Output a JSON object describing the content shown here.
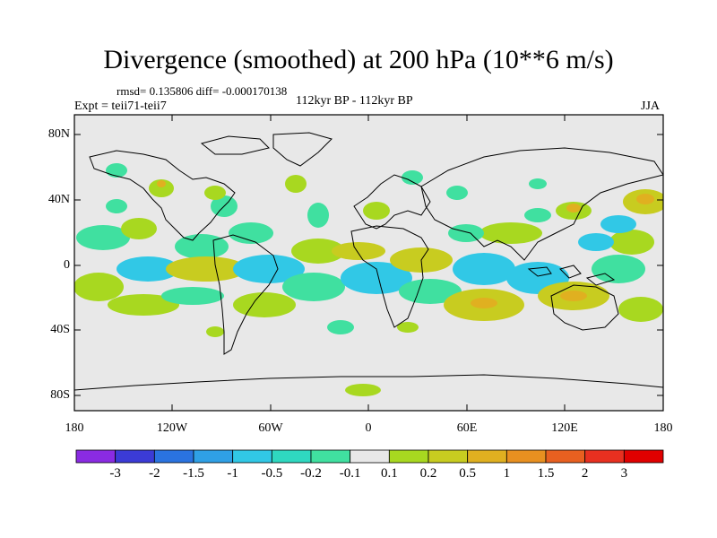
{
  "title": "Divergence (smoothed) at 200 hPa (10**6 m/s)",
  "stats": "rmsd= 0.135806 diff= -0.000170138",
  "experiment": "Expt = teii71-teii7",
  "center_label": "112kyr BP - 112kyr BP",
  "season": "JJA",
  "y_ticks": [
    "80N",
    "40N",
    "0",
    "40S",
    "80S"
  ],
  "x_ticks": [
    "180",
    "120W",
    "60W",
    "0",
    "60E",
    "120E",
    "180"
  ],
  "colorbar": {
    "labels": [
      "-3",
      "-2",
      "-1.5",
      "-1",
      "-0.5",
      "-0.2",
      "-0.1",
      "0.1",
      "0.2",
      "0.5",
      "1",
      "1.5",
      "2",
      "3"
    ],
    "colors": [
      "#8a2be2",
      "#3b3bd6",
      "#2a73e0",
      "#2fa0e6",
      "#31c8e6",
      "#2fd8c0",
      "#40e0a0",
      "#e8e8e8",
      "#a8d820",
      "#c8cc20",
      "#e0b020",
      "#e89020",
      "#e86020",
      "#e83020",
      "#e00000"
    ]
  },
  "colors": {
    "background": "#e8e8e8",
    "positive_small": "#a8d820",
    "positive_mid": "#c8cc20",
    "positive_high": "#e0b020",
    "negative_small": "#40e0a0",
    "negative_mid": "#31c8e6",
    "coastline": "#000000"
  }
}
